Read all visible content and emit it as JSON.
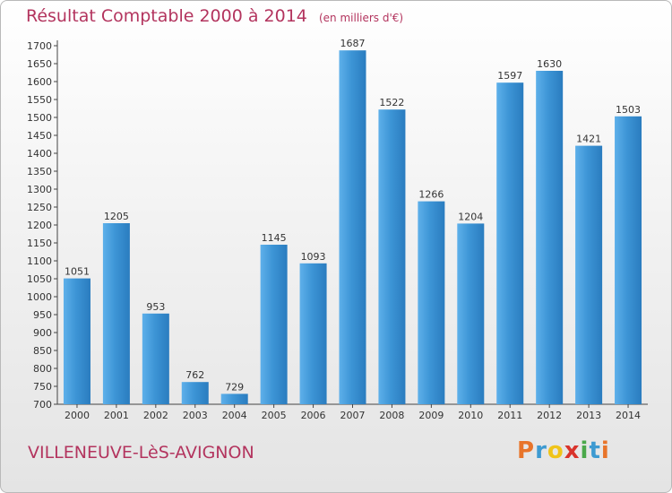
{
  "title": "Résultat Comptable 2000 à 2014",
  "subtitle": "(en milliers d'€)",
  "town": "VILLENEUVE-LèS-AVIGNON",
  "brand": {
    "letters": [
      "P",
      "r",
      "o",
      "x",
      "i",
      "t",
      "i"
    ],
    "colors": [
      "#e8742a",
      "#3d9ad1",
      "#f0c419",
      "#d9332b",
      "#4aa84a",
      "#3d9ad1",
      "#e8742a"
    ]
  },
  "colors": {
    "accent": "#b3345e",
    "bar": "#3d95d6",
    "bar_light": "#5eb0ea",
    "bar_dark": "#2a7cbf"
  },
  "chart_data": {
    "type": "bar",
    "categories": [
      "2000",
      "2001",
      "2002",
      "2003",
      "2004",
      "2005",
      "2006",
      "2007",
      "2008",
      "2009",
      "2010",
      "2011",
      "2012",
      "2013",
      "2014"
    ],
    "values": [
      1051,
      1205,
      953,
      762,
      729,
      1145,
      1093,
      1687,
      1522,
      1266,
      1204,
      1597,
      1630,
      1421,
      1503
    ],
    "title": "Résultat Comptable 2000 à 2014",
    "xlabel": "",
    "ylabel": "",
    "ylim": [
      700,
      1700
    ],
    "yticks": [
      700,
      750,
      800,
      850,
      900,
      950,
      1000,
      1050,
      1100,
      1150,
      1200,
      1250,
      1300,
      1350,
      1400,
      1450,
      1500,
      1550,
      1600,
      1650,
      1700
    ],
    "grid": false,
    "data_labels": true
  }
}
